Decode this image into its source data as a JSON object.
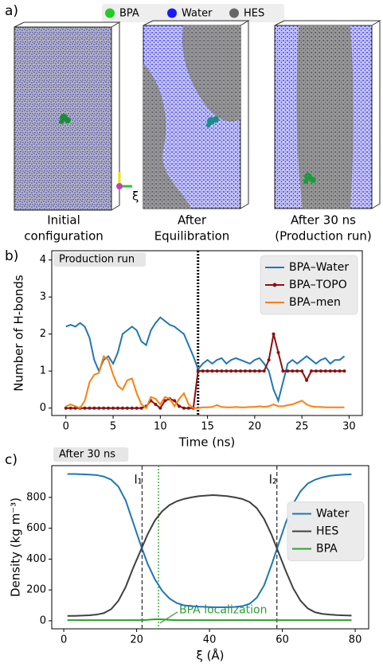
{
  "panel_a": {
    "label": "a)",
    "legend": [
      {
        "name": "BPA",
        "color": "#22cc22"
      },
      {
        "name": "Water",
        "color": "#1a1aff"
      },
      {
        "name": "HES",
        "color": "#666666"
      }
    ],
    "axis_symbol": "ξ",
    "snapshots": [
      [
        "Initial",
        "configuration"
      ],
      [
        "After",
        "Equilibration"
      ],
      [
        "After 30 ns",
        "(Production run)"
      ]
    ]
  },
  "chart_data": [
    {
      "type": "line",
      "panel_label": "b)",
      "tag": "Production run",
      "xlabel": "Time (ns)",
      "ylabel": "Number of H-bonds",
      "x": [
        0,
        0.5,
        1,
        1.5,
        2,
        2.5,
        3,
        3.5,
        4,
        4.5,
        5,
        5.5,
        6,
        6.5,
        7,
        7.5,
        8,
        8.5,
        9,
        9.5,
        10,
        10.5,
        11,
        11.5,
        12,
        12.5,
        13,
        13.5,
        14,
        14.5,
        15,
        15.5,
        16,
        16.5,
        17,
        17.5,
        18,
        18.5,
        19,
        19.5,
        20,
        20.5,
        21,
        21.5,
        22,
        22.5,
        23,
        23.5,
        24,
        24.5,
        25,
        25.5,
        26,
        26.5,
        27,
        27.5,
        28,
        28.5,
        29,
        29.5
      ],
      "series": [
        {
          "name": "BPA–Water",
          "color": "#1f77b4",
          "marker": false,
          "values": [
            2.2,
            2.25,
            2.2,
            2.3,
            2.2,
            1.9,
            1.3,
            1.0,
            1.3,
            1.4,
            1.2,
            1.5,
            2.0,
            2.1,
            2.2,
            2.1,
            1.8,
            1.7,
            2.1,
            2.3,
            2.45,
            2.35,
            2.25,
            2.2,
            2.1,
            2.0,
            1.7,
            1.4,
            1.05,
            1.2,
            1.3,
            1.2,
            1.3,
            1.35,
            1.2,
            1.3,
            1.35,
            1.3,
            1.25,
            1.2,
            1.3,
            1.35,
            1.2,
            1.0,
            0.5,
            0.2,
            0.7,
            1.2,
            1.3,
            1.2,
            1.3,
            1.4,
            1.3,
            1.2,
            1.3,
            1.35,
            1.2,
            1.3,
            1.3,
            1.4
          ]
        },
        {
          "name": "BPA–TOPO",
          "color": "#8b1010",
          "marker": true,
          "values": [
            0,
            0,
            0,
            0,
            0,
            0,
            0,
            0,
            0,
            0,
            0,
            0,
            0,
            0,
            0,
            0,
            0,
            0.05,
            0.2,
            0.1,
            0,
            0.2,
            0.25,
            0.2,
            0.05,
            0,
            0,
            0,
            1,
            1,
            1,
            1,
            1,
            1,
            1,
            1,
            1,
            1,
            1,
            1,
            1,
            1,
            1,
            1.3,
            2.0,
            1.5,
            1,
            1,
            1,
            1,
            1,
            0.75,
            1,
            1,
            1,
            1,
            1,
            1,
            1,
            1
          ]
        },
        {
          "name": "BPA–men",
          "color": "#ff7f0e",
          "marker": false,
          "values": [
            0.05,
            0.1,
            0.05,
            0,
            0.2,
            0.7,
            0.9,
            0.95,
            1.4,
            1.3,
            0.9,
            0.6,
            0.5,
            0.75,
            0.8,
            0.4,
            0.1,
            0,
            0.3,
            0.25,
            0.1,
            0.3,
            0.25,
            0.05,
            0.25,
            0.4,
            0.1,
            0,
            0,
            0.02,
            0.02,
            0.03,
            0.08,
            0.03,
            0.02,
            0.02,
            0.03,
            0.02,
            0.02,
            0.03,
            0.03,
            0.05,
            0.03,
            0.05,
            0.1,
            0.05,
            0.05,
            0.08,
            0.1,
            0.15,
            0.2,
            0.1,
            0.05,
            0.03,
            0.03,
            0.02,
            0.02,
            0.02,
            0.02,
            0.02
          ]
        }
      ],
      "vlines": [
        {
          "x": 14,
          "color": "#000000",
          "style": "dotted"
        }
      ],
      "xlim": [
        -1.5,
        31.4
      ],
      "xticks": [
        0,
        5,
        10,
        15,
        20,
        25,
        30
      ],
      "ylim": [
        -0.2,
        4.25
      ],
      "yticks": [
        0,
        1,
        2,
        3,
        4
      ],
      "legend": "upper right"
    },
    {
      "type": "line",
      "panel_label": "c)",
      "tag": "After 30 ns",
      "xlabel": "ξ (Å)",
      "ylabel": "Density (kg m⁻³)",
      "x": [
        1,
        3,
        5,
        7,
        9,
        11,
        13,
        15,
        17,
        19,
        21,
        23,
        25,
        27,
        29,
        31,
        33,
        35,
        37,
        39,
        41,
        43,
        45,
        47,
        49,
        51,
        53,
        55,
        57,
        59,
        61,
        63,
        65,
        67,
        69,
        71,
        73,
        75,
        77,
        79
      ],
      "series": [
        {
          "name": "Water",
          "color": "#1f77b4",
          "marker": false,
          "values": [
            952,
            952,
            950,
            948,
            945,
            935,
            915,
            870,
            780,
            640,
            500,
            370,
            270,
            195,
            145,
            115,
            100,
            95,
            92,
            90,
            88,
            88,
            88,
            90,
            95,
            110,
            150,
            230,
            360,
            500,
            640,
            760,
            840,
            890,
            915,
            930,
            940,
            945,
            948,
            950
          ]
        },
        {
          "name": "HES",
          "color": "#404040",
          "marker": false,
          "values": [
            32,
            32,
            34,
            36,
            40,
            50,
            75,
            130,
            220,
            340,
            450,
            560,
            650,
            710,
            750,
            775,
            790,
            800,
            808,
            812,
            815,
            812,
            808,
            800,
            790,
            770,
            730,
            660,
            560,
            440,
            320,
            210,
            130,
            80,
            55,
            45,
            40,
            37,
            35,
            34
          ]
        },
        {
          "name": "BPA",
          "color": "#2ca02c",
          "marker": false,
          "values": [
            4,
            4,
            4,
            4,
            4,
            4,
            4,
            4,
            4,
            4,
            4,
            6,
            10,
            9,
            6,
            4,
            4,
            4,
            4,
            4,
            4,
            4,
            4,
            4,
            4,
            4,
            4,
            4,
            4,
            4,
            4,
            4,
            4,
            4,
            4,
            4,
            4,
            4,
            4,
            4
          ]
        }
      ],
      "vlines": [
        {
          "x": 21.5,
          "color": "#333333",
          "style": "dashed",
          "label": "l₁"
        },
        {
          "x": 58.5,
          "color": "#333333",
          "style": "dashed",
          "label": "l₂"
        },
        {
          "x": 26,
          "color": "#2ca02c",
          "style": "dotted"
        }
      ],
      "annotation": {
        "text": "BPA localization",
        "x": 26,
        "color": "#2ca02c"
      },
      "xlim": [
        -3.3,
        83.7
      ],
      "xticks": [
        0,
        20,
        40,
        60,
        80
      ],
      "ylim": [
        -52,
        1006
      ],
      "yticks": [
        0,
        200,
        400,
        600,
        800
      ],
      "legend": "center right"
    }
  ]
}
